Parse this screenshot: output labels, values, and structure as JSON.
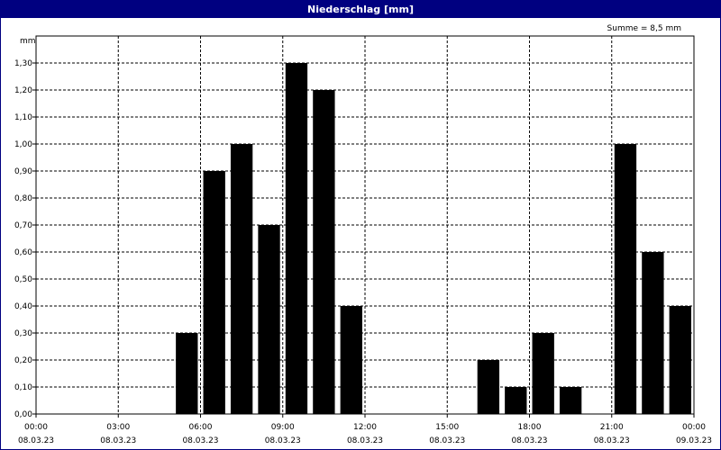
{
  "window": {
    "title": "Niederschlag [mm]"
  },
  "annotation": "Summe = 8,5 mm",
  "colors": {
    "bar": "#000000",
    "titlebar": "#000080",
    "grid": "#000000"
  },
  "chart_data": {
    "type": "bar",
    "title": "Niederschlag [mm]",
    "ylabel": "mm",
    "xlabel": "",
    "ylim": [
      0,
      1.4
    ],
    "grid": true,
    "yticks": [
      "0,00",
      "0,10",
      "0,20",
      "0,30",
      "0,40",
      "0,50",
      "0,60",
      "0,70",
      "0,80",
      "0,90",
      "1,00",
      "1,10",
      "1,20",
      "1,30"
    ],
    "xticks": [
      {
        "time": "00:00",
        "date": "08.03.23"
      },
      {
        "time": "03:00",
        "date": "08.03.23"
      },
      {
        "time": "06:00",
        "date": "08.03.23"
      },
      {
        "time": "09:00",
        "date": "08.03.23"
      },
      {
        "time": "12:00",
        "date": "08.03.23"
      },
      {
        "time": "15:00",
        "date": "08.03.23"
      },
      {
        "time": "18:00",
        "date": "08.03.23"
      },
      {
        "time": "21:00",
        "date": "08.03.23"
      },
      {
        "time": "00:00",
        "date": "09.03.23"
      }
    ],
    "x_hours": [
      1,
      2,
      3,
      4,
      5,
      6,
      7,
      8,
      9,
      10,
      11,
      12,
      13,
      14,
      15,
      16,
      17,
      18,
      19,
      20,
      21,
      22,
      23,
      24
    ],
    "values": [
      0,
      0,
      0,
      0,
      0,
      0.3,
      0.9,
      1.0,
      0.7,
      1.3,
      1.2,
      0.4,
      0,
      0,
      0,
      0,
      0.2,
      0.1,
      0.3,
      0.1,
      0,
      1.0,
      0.6,
      0.4
    ]
  }
}
